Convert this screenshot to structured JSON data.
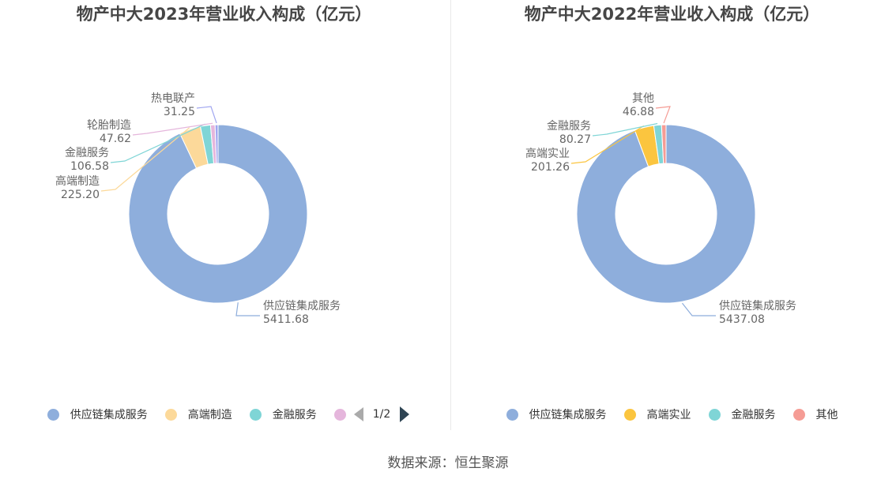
{
  "source": "数据来源：恒生聚源",
  "pager_text": "1/2",
  "chart_data": [
    {
      "type": "pie",
      "title": "物产中大2023年营业收入构成（亿元）",
      "series": [
        {
          "name": "供应链集成服务",
          "value": 5411.68,
          "label": "5411.68",
          "color": "#8eaedc"
        },
        {
          "name": "高端制造",
          "value": 225.2,
          "label": "225.20",
          "color": "#fcd99a"
        },
        {
          "name": "金融服务",
          "value": 106.58,
          "label": "106.58",
          "color": "#7fd5d6"
        },
        {
          "name": "轮胎制造",
          "value": 47.62,
          "label": "47.62",
          "color": "#e5b6dc"
        },
        {
          "name": "热电联产",
          "value": 31.25,
          "label": "31.25",
          "color": "#a0a6f0"
        }
      ],
      "legend_visible": [
        "供应链集成服务",
        "高端制造",
        "金融服务"
      ],
      "legend_position": "bottom"
    },
    {
      "type": "pie",
      "title": "物产中大2022年营业收入构成（亿元）",
      "series": [
        {
          "name": "供应链集成服务",
          "value": 5437.08,
          "label": "5437.08",
          "color": "#8eaedc"
        },
        {
          "name": "高端实业",
          "value": 201.26,
          "label": "201.26",
          "color": "#fbc53f"
        },
        {
          "name": "金融服务",
          "value": 80.27,
          "label": "80.27",
          "color": "#7fd5d6"
        },
        {
          "name": "其他",
          "value": 46.88,
          "label": "46.88",
          "color": "#f59c95"
        }
      ],
      "legend_visible": [
        "供应链集成服务",
        "高端实业",
        "金融服务",
        "其他"
      ],
      "legend_position": "bottom"
    }
  ]
}
